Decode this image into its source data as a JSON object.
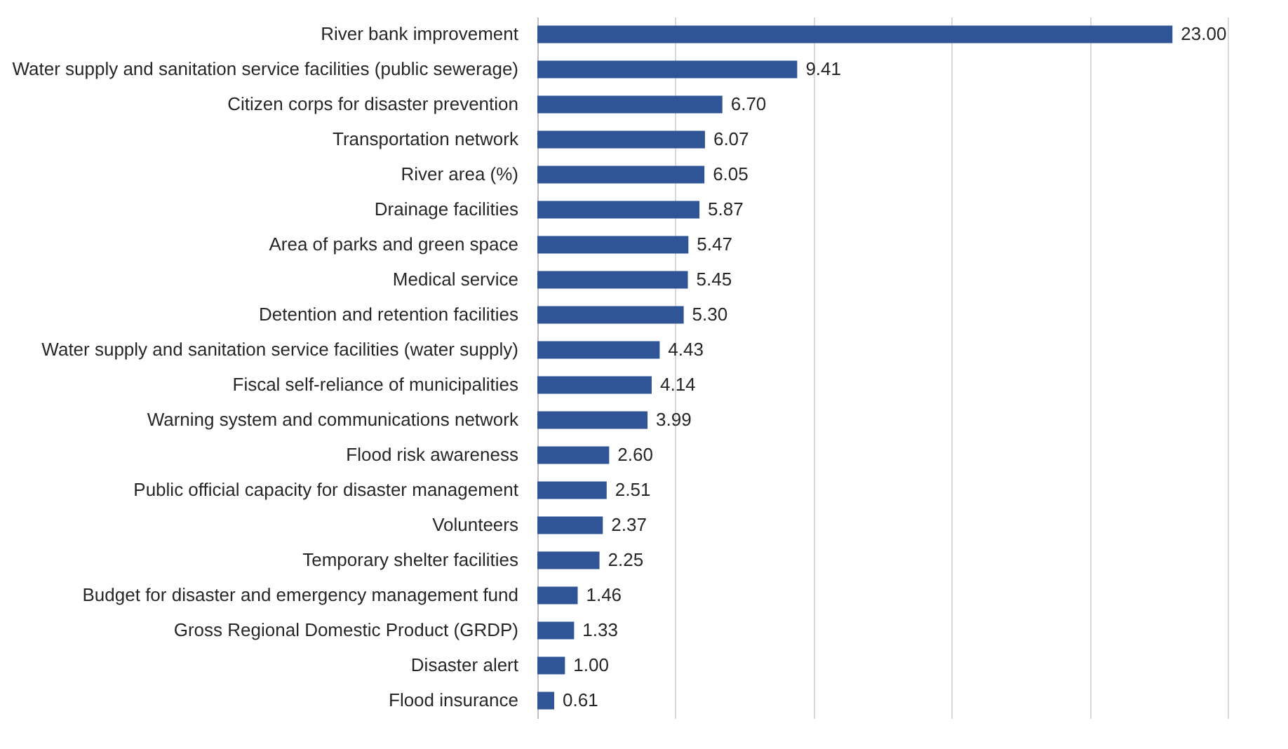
{
  "chart_data": {
    "type": "bar",
    "orientation": "horizontal",
    "categories": [
      "River bank improvement",
      "Water supply and sanitation service facilities (public sewerage)",
      "Citizen corps for disaster prevention",
      "Transportation network",
      "River area (%)",
      "Drainage facilities",
      "Area of parks and green space",
      "Medical service",
      "Detention and retention facilities",
      "Water supply and sanitation service facilities (water supply)",
      "Fiscal self-reliance of municipalities",
      "Warning system and communications network",
      "Flood risk awareness",
      "Public official capacity for disaster management",
      "Volunteers",
      "Temporary shelter facilities",
      "Budget for disaster and emergency management fund",
      "Gross Regional Domestic Product (GRDP)",
      "Disaster alert",
      "Flood insurance"
    ],
    "values": [
      23.0,
      9.41,
      6.7,
      6.07,
      6.05,
      5.87,
      5.47,
      5.45,
      5.3,
      4.43,
      4.14,
      3.99,
      2.6,
      2.51,
      2.37,
      2.25,
      1.46,
      1.33,
      1.0,
      0.61
    ],
    "value_labels": [
      "23.00",
      "9.41",
      "6.70",
      "6.07",
      "6.05",
      "5.87",
      "5.47",
      "5.45",
      "5.30",
      "4.43",
      "4.14",
      "3.99",
      "2.60",
      "2.51",
      "2.37",
      "2.25",
      "1.46",
      "1.33",
      "1.00",
      "0.61"
    ],
    "color": "#2f5597",
    "xlim": [
      0,
      25
    ],
    "xticks": [
      {
        "value": 0,
        "label": null
      },
      {
        "value": 5,
        "label": null
      },
      {
        "value": 10,
        "label": null
      },
      {
        "value": 15,
        "label": null
      },
      {
        "value": 20,
        "label": null
      },
      {
        "value": 25,
        "label": null
      }
    ],
    "grid": "x",
    "tick_labels": "y"
  }
}
